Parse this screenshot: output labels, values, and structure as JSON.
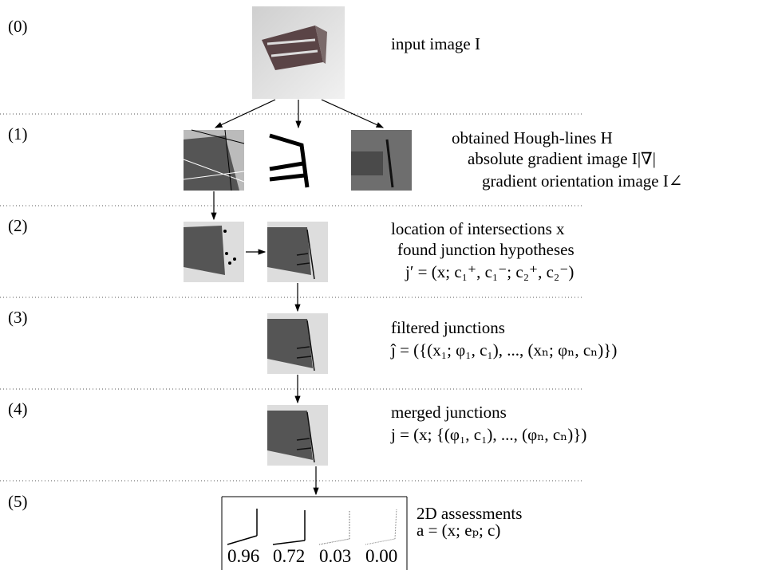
{
  "stages": [
    {
      "label": "(0)",
      "lines": [
        "input image I"
      ]
    },
    {
      "label": "(1)",
      "lines": [
        "obtained Hough-lines H",
        "absolute gradient image I|∇|",
        "gradient orientation image I∠"
      ]
    },
    {
      "label": "(2)",
      "lines": [
        "location of intersections x",
        "found junction hypotheses",
        "j′ = (x; c₁⁺, c₁⁻; c₂⁺, c₂⁻)"
      ]
    },
    {
      "label": "(3)",
      "lines": [
        "filtered junctions",
        "ĵ = ({(x₁; φ₁, c₁), ..., (xₙ; φₙ, cₙ)})"
      ]
    },
    {
      "label": "(4)",
      "lines": [
        "merged junctions",
        "j = (x; {(φ₁, c₁), ..., (φₙ, cₙ)})"
      ]
    },
    {
      "label": "(5)",
      "lines": [
        "2D assessments",
        "a = (x; eₚ; c)"
      ]
    }
  ],
  "assessments": [
    "0.96",
    "0.72",
    "0.03",
    "0.00"
  ]
}
